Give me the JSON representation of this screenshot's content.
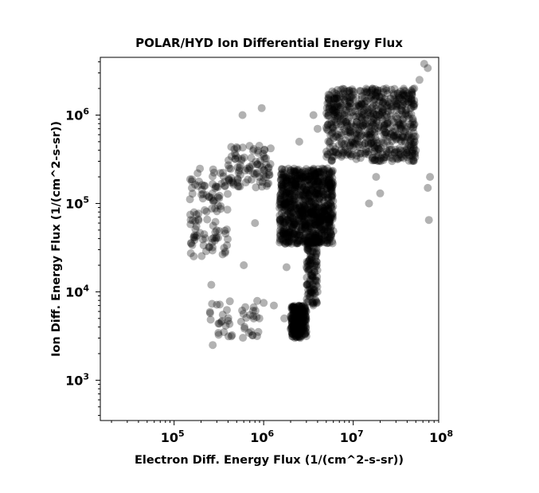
{
  "chart_data": {
    "type": "scatter",
    "title": "POLAR/HYD  Ion Differential Energy Flux",
    "xlabel": "Electron Diff. Energy Flux (1/(cm^2-s-sr))",
    "ylabel": "Ion Diff. Energy Flux (1/(cm^2-s-sr))",
    "x_scale": "log",
    "y_scale": "log",
    "xlim": [
      15000,
      90000000
    ],
    "ylim": [
      350,
      4500000
    ],
    "x_ticks": [
      {
        "value": 100000,
        "base": "10",
        "exp": "5"
      },
      {
        "value": 1000000,
        "base": "10",
        "exp": "6"
      },
      {
        "value": 10000000,
        "base": "10",
        "exp": "7"
      },
      {
        "value": 100000000,
        "base": "10",
        "exp": "8"
      }
    ],
    "y_ticks": [
      {
        "value": 1000,
        "base": "10",
        "exp": "3"
      },
      {
        "value": 10000,
        "base": "10",
        "exp": "4"
      },
      {
        "value": 100000,
        "base": "10",
        "exp": "5"
      },
      {
        "value": 1000000,
        "base": "10",
        "exp": "6"
      }
    ],
    "grid": false,
    "marker_color": "#000000",
    "marker_opacity": 0.3,
    "point_groups": [
      {
        "x": [
          1500000,
          6000000
        ],
        "y": [
          35000,
          250000
        ],
        "count": 900
      },
      {
        "x": [
          5000000,
          50000000
        ],
        "y": [
          300000,
          2000000
        ],
        "count": 650
      },
      {
        "x": [
          2000000,
          3000000
        ],
        "y": [
          3000,
          7000
        ],
        "count": 220
      },
      {
        "x": [
          3000000,
          4000000
        ],
        "y": [
          7000,
          40000
        ],
        "count": 120
      },
      {
        "x": [
          150000,
          400000
        ],
        "y": [
          25000,
          250000
        ],
        "count": 110
      },
      {
        "x": [
          400000,
          1200000
        ],
        "y": [
          150000,
          450000
        ],
        "count": 90
      },
      {
        "x": [
          250000,
          900000
        ],
        "y": [
          3000,
          8000
        ],
        "count": 45
      }
    ],
    "points": [
      [
        62000000,
        3800000
      ],
      [
        68000000,
        3400000
      ],
      [
        55000000,
        2500000
      ],
      [
        48000000,
        2000000
      ],
      [
        35000000,
        1500000
      ],
      [
        25000000,
        1200000
      ],
      [
        72000000,
        200000
      ],
      [
        68000000,
        150000
      ],
      [
        70000000,
        65000
      ],
      [
        580000,
        1000000
      ],
      [
        950000,
        1200000
      ],
      [
        3600000,
        1000000
      ],
      [
        18000000,
        200000
      ],
      [
        20000000,
        130000
      ],
      [
        15000000,
        100000
      ],
      [
        700000,
        250000
      ],
      [
        800000,
        60000
      ],
      [
        270000,
        2500
      ],
      [
        360000,
        3500
      ],
      [
        600000,
        20000
      ],
      [
        1000000,
        7500
      ],
      [
        1300000,
        7000
      ],
      [
        1700000,
        5000
      ],
      [
        1800000,
        19000
      ],
      [
        260000,
        12000
      ],
      [
        2500000,
        500000
      ],
      [
        4000000,
        700000
      ]
    ]
  }
}
